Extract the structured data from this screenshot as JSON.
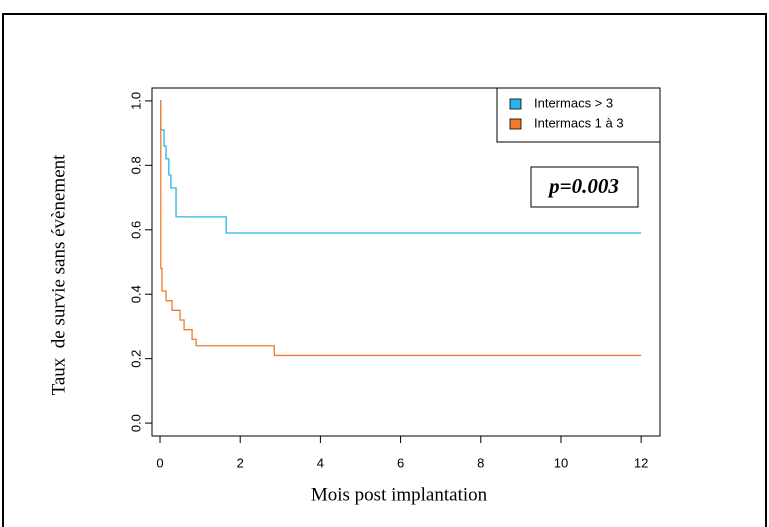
{
  "chart_data": {
    "type": "line",
    "step": "post",
    "x_label": "Mois post implantation",
    "y_label": "Taux  de survie sans évènement",
    "annotation": "p=0.003",
    "legend": "top-right",
    "xlim": [
      -0.2,
      12.47
    ],
    "ylim": [
      -0.04,
      1.04
    ],
    "xticks": [
      0,
      2,
      4,
      6,
      8,
      10,
      12
    ],
    "yticks": [
      {
        "value": 0,
        "label": "0.0"
      },
      0.2,
      0.4,
      0.6,
      0.8,
      {
        "value": 1,
        "label": "1.0"
      }
    ],
    "series": [
      {
        "name": "Intermacs > 3",
        "color": "#2bb3e8",
        "x": [
          0,
          0.02,
          0.1,
          0.15,
          0.22,
          0.27,
          0.4,
          1.65,
          12
        ],
        "values": [
          1,
          0.91,
          0.86,
          0.82,
          0.77,
          0.73,
          0.64,
          0.59,
          0.59
        ]
      },
      {
        "name": "Intermacs 1 à 3",
        "color": "#f07b2c",
        "x": [
          0,
          0.02,
          0.05,
          0.15,
          0.3,
          0.5,
          0.6,
          0.8,
          0.9,
          2.85,
          12
        ],
        "values": [
          1,
          0.48,
          0.41,
          0.38,
          0.35,
          0.32,
          0.29,
          0.26,
          0.24,
          0.21,
          0.21
        ]
      }
    ]
  }
}
